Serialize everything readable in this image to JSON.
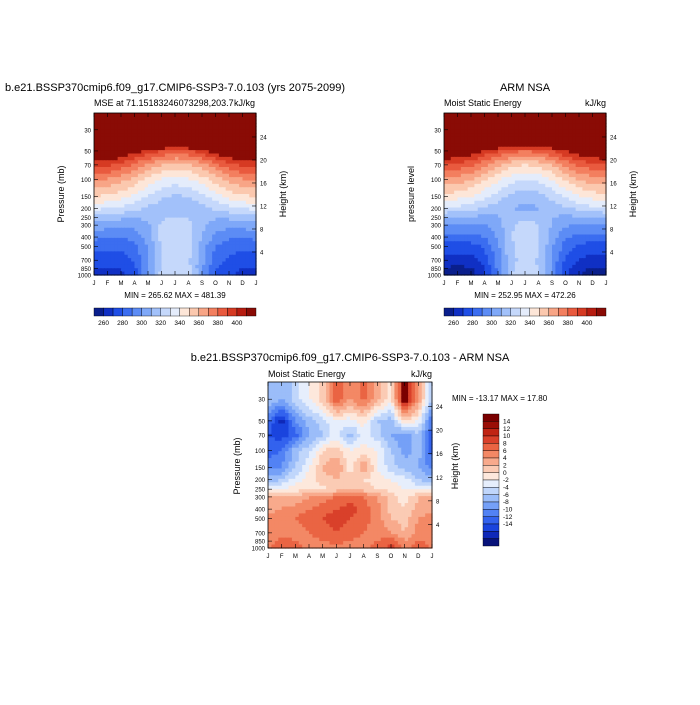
{
  "chart_data": [
    {
      "type": "heatmap",
      "title": "b.e21.BSSP370cmip6.f09_g17.CMIP6-SSP3-7.0.103 (yrs 2075-2099)",
      "subtitle_left": "MSE at 71.15183246073298,203.7",
      "units": "kJ/kg",
      "xlabel": "",
      "ylabel": "Pressure (mb)",
      "ylabel_right": "Height (km)",
      "x_ticks": [
        "J",
        "F",
        "M",
        "A",
        "M",
        "J",
        "J",
        "A",
        "S",
        "O",
        "N",
        "D",
        "J"
      ],
      "y_ticks": [
        "30",
        "50",
        "70",
        "100",
        "150",
        "200",
        "250",
        "300",
        "400",
        "500",
        "700",
        "850",
        "1000"
      ],
      "y_ticks_right": [
        "24",
        "20",
        "16",
        "12",
        "8",
        "4"
      ],
      "minmax_text": "MIN = 265.62 MAX = 481.39",
      "colorbar_labels": [
        "260",
        "280",
        "300",
        "320",
        "340",
        "360",
        "380",
        "400"
      ],
      "field": {
        "pressure": [
          30,
          50,
          70,
          100,
          150,
          200,
          250,
          300,
          400,
          500,
          700,
          850,
          1000
        ],
        "months": [
          1,
          2,
          3,
          4,
          5,
          6,
          7,
          8,
          9,
          10,
          11,
          12,
          13
        ],
        "rows": [
          [
            480,
            480,
            480,
            480,
            481,
            481,
            481,
            481,
            480,
            480,
            480,
            480,
            480
          ],
          [
            420,
            418,
            414,
            405,
            398,
            390,
            386,
            389,
            396,
            406,
            414,
            418,
            420
          ],
          [
            395,
            392,
            387,
            377,
            368,
            360,
            356,
            359,
            366,
            377,
            387,
            392,
            395
          ],
          [
            372,
            369,
            364,
            356,
            347,
            339,
            335,
            338,
            345,
            355,
            364,
            369,
            372
          ],
          [
            350,
            348,
            344,
            337,
            329,
            322,
            318,
            320,
            327,
            336,
            343,
            348,
            350
          ],
          [
            332,
            331,
            328,
            323,
            318,
            314,
            311,
            313,
            317,
            322,
            327,
            331,
            332
          ],
          [
            315,
            314,
            312,
            311,
            312,
            318,
            322,
            320,
            314,
            311,
            312,
            314,
            315
          ],
          [
            305,
            304,
            303,
            303,
            308,
            322,
            326,
            324,
            312,
            305,
            303,
            304,
            305
          ],
          [
            293,
            292,
            291,
            294,
            305,
            323,
            327,
            325,
            310,
            297,
            292,
            292,
            293
          ],
          [
            283,
            282,
            282,
            287,
            301,
            322,
            327,
            324,
            306,
            290,
            284,
            282,
            283
          ],
          [
            276,
            275,
            275,
            281,
            299,
            321,
            326,
            322,
            303,
            285,
            278,
            275,
            276
          ],
          [
            271,
            270,
            270,
            277,
            298,
            322,
            327,
            323,
            302,
            281,
            274,
            270,
            271
          ],
          [
            267,
            266,
            267,
            275,
            299,
            324,
            329,
            325,
            303,
            280,
            271,
            267,
            267
          ]
        ]
      }
    },
    {
      "type": "heatmap",
      "title": "ARM NSA",
      "subtitle_left": "Moist Static Energy",
      "units": "kJ/kg",
      "xlabel": "",
      "ylabel": "pressure level",
      "ylabel_right": "Height (km)",
      "x_ticks": [
        "J",
        "F",
        "M",
        "A",
        "M",
        "J",
        "J",
        "A",
        "S",
        "O",
        "N",
        "D",
        "J"
      ],
      "y_ticks": [
        "30",
        "50",
        "70",
        "100",
        "150",
        "200",
        "250",
        "300",
        "400",
        "500",
        "700",
        "850",
        "1000"
      ],
      "y_ticks_right": [
        "24",
        "20",
        "16",
        "12",
        "8",
        "4"
      ],
      "minmax_text": "MIN = 252.95 MAX = 472.26",
      "colorbar_labels": [
        "260",
        "280",
        "300",
        "320",
        "340",
        "360",
        "380",
        "400"
      ],
      "field": {
        "pressure": [
          30,
          50,
          70,
          100,
          150,
          200,
          250,
          300,
          400,
          500,
          700,
          850,
          1000
        ],
        "months": [
          1,
          2,
          3,
          4,
          5,
          6,
          7,
          8,
          9,
          10,
          11,
          12,
          13
        ],
        "rows": [
          [
            470,
            470,
            470,
            471,
            471,
            472,
            472,
            471,
            471,
            470,
            470,
            470,
            470
          ],
          [
            415,
            412,
            408,
            399,
            391,
            384,
            380,
            383,
            390,
            400,
            408,
            412,
            415
          ],
          [
            390,
            387,
            382,
            372,
            362,
            354,
            350,
            353,
            361,
            372,
            382,
            387,
            390
          ],
          [
            368,
            365,
            360,
            351,
            342,
            333,
            329,
            332,
            340,
            351,
            360,
            365,
            368
          ],
          [
            346,
            344,
            340,
            333,
            325,
            317,
            313,
            316,
            323,
            332,
            340,
            344,
            346
          ],
          [
            328,
            327,
            324,
            319,
            314,
            310,
            307,
            309,
            313,
            318,
            323,
            327,
            328
          ],
          [
            311,
            310,
            308,
            307,
            309,
            315,
            319,
            317,
            311,
            307,
            308,
            310,
            311
          ],
          [
            300,
            299,
            298,
            299,
            305,
            319,
            323,
            321,
            309,
            301,
            299,
            299,
            300
          ],
          [
            287,
            286,
            286,
            290,
            302,
            320,
            324,
            322,
            306,
            292,
            287,
            286,
            287
          ],
          [
            276,
            275,
            276,
            282,
            298,
            319,
            324,
            321,
            302,
            285,
            278,
            275,
            276
          ],
          [
            266,
            265,
            266,
            274,
            295,
            318,
            323,
            319,
            299,
            278,
            270,
            266,
            266
          ],
          [
            259,
            258,
            259,
            269,
            293,
            318,
            324,
            320,
            297,
            273,
            264,
            259,
            259
          ],
          [
            254,
            253,
            255,
            266,
            293,
            320,
            326,
            322,
            298,
            271,
            261,
            255,
            254
          ]
        ]
      }
    },
    {
      "type": "heatmap",
      "title": "b.e21.BSSP370cmip6.f09_g17.CMIP6-SSP3-7.0.103 - ARM NSA",
      "subtitle_left": "Moist Static Energy",
      "units": "kJ/kg",
      "xlabel": "",
      "ylabel": "Pressure (mb)",
      "ylabel_right": "Height (km)",
      "x_ticks": [
        "J",
        "F",
        "M",
        "A",
        "M",
        "J",
        "J",
        "A",
        "S",
        "O",
        "N",
        "D",
        "J"
      ],
      "y_ticks": [
        "30",
        "50",
        "70",
        "100",
        "150",
        "200",
        "250",
        "300",
        "400",
        "500",
        "700",
        "850",
        "1000"
      ],
      "y_ticks_right": [
        "24",
        "20",
        "16",
        "12",
        "8",
        "4"
      ],
      "minmax_text": "MIN = -13.17 MAX =  17.80",
      "colorbar_labels": [
        "14",
        "12",
        "10",
        "8",
        "6",
        "4",
        "2",
        "0",
        "-2",
        "-4",
        "-6",
        "-8",
        "-10",
        "-12",
        "-14"
      ],
      "field": {
        "pressure": [
          30,
          50,
          70,
          100,
          150,
          200,
          250,
          300,
          400,
          500,
          700,
          850,
          1000
        ],
        "months": [
          1,
          2,
          3,
          4,
          5,
          6,
          7,
          8,
          9,
          10,
          11,
          12,
          13
        ],
        "rows": [
          [
            -2,
            -4,
            -1,
            2,
            5,
            12,
            8,
            11,
            7,
            3,
            17,
            8,
            -2
          ],
          [
            -8,
            -13,
            -6,
            -3,
            -1,
            2,
            1,
            3,
            -2,
            -3,
            4,
            2,
            -8
          ],
          [
            -10,
            -11,
            -9,
            -4,
            -2,
            1,
            -3,
            1,
            -1,
            -4,
            -6,
            -2,
            -10
          ],
          [
            -9,
            -8,
            -3,
            -1,
            4,
            5,
            2,
            3,
            2,
            -2,
            -5,
            -3,
            -9
          ],
          [
            -7,
            -6,
            -2,
            2,
            6,
            8,
            3,
            8,
            2,
            -1,
            -3,
            -4,
            -7
          ],
          [
            -3,
            -2,
            1,
            3,
            5,
            6,
            5,
            4,
            3,
            2,
            1,
            -2,
            -3
          ],
          [
            1,
            2,
            3,
            4,
            3,
            5,
            6,
            5,
            4,
            3,
            2,
            1,
            1
          ],
          [
            6,
            7,
            6,
            8,
            9,
            10,
            11,
            10,
            8,
            5,
            3,
            6,
            6
          ],
          [
            7,
            8,
            9,
            10,
            11,
            12,
            13,
            11,
            9,
            5,
            4,
            7,
            7
          ],
          [
            9,
            10,
            10,
            11,
            12,
            13,
            12,
            11,
            9,
            6,
            5,
            8,
            9
          ],
          [
            8,
            9,
            9,
            10,
            11,
            12,
            11,
            10,
            9,
            8,
            6,
            9,
            8
          ],
          [
            9,
            11,
            10,
            9,
            10,
            11,
            10,
            9,
            10,
            12,
            8,
            10,
            9
          ],
          [
            10,
            12,
            11,
            9,
            8,
            9,
            8,
            9,
            11,
            13,
            9,
            12,
            10
          ]
        ]
      }
    }
  ],
  "colors": {
    "abs_scale": [
      "#0a1f8c",
      "#1030c4",
      "#1f4ee6",
      "#3b6df0",
      "#5c8cf5",
      "#7fa8f8",
      "#a2c1fa",
      "#c5d8fb",
      "#e4ecfb",
      "#fde6d8",
      "#fbc8ae",
      "#f8a586",
      "#f37f5f",
      "#e95a3e",
      "#d63a23",
      "#b71c10",
      "#8a0b05"
    ],
    "diff_scale": [
      "#08127a",
      "#0f28b8",
      "#1a44de",
      "#3362ee",
      "#5282f4",
      "#75a0f7",
      "#9bbdf9",
      "#c0d6fb",
      "#e6eefc",
      "#fde8dc",
      "#fbcbb4",
      "#f8aa8c",
      "#f38865",
      "#ea6443",
      "#d9402a",
      "#c02414",
      "#9a0e06",
      "#7a0000"
    ]
  }
}
